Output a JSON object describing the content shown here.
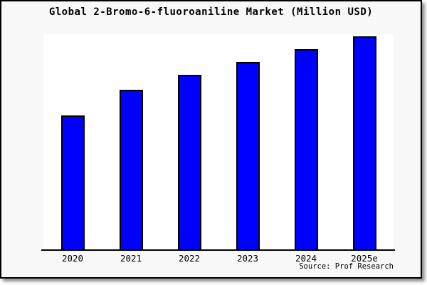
{
  "colors": {
    "bar_fill": "#0000ff",
    "bar_border": "#000000",
    "card_background": "#f8f8f8",
    "plot_background": "#ffffff",
    "axis": "#000000",
    "text": "#000000"
  },
  "chart_data": {
    "type": "bar",
    "title": "Global 2-Bromo-6-fluoroaniline Market (Million USD)",
    "categories": [
      "2020",
      "2021",
      "2022",
      "2023",
      "2024",
      "2025e"
    ],
    "values": [
      63,
      75,
      82,
      88,
      94,
      100
    ],
    "values_scale": "relative index (no y-axis tick labels or data labels are shown in the chart)",
    "xlabel": "",
    "ylabel": "",
    "ylim": [
      0,
      101
    ],
    "grid": false,
    "legend": false,
    "y_axis_ticks_visible": false,
    "source": "Source: Prof Research"
  }
}
